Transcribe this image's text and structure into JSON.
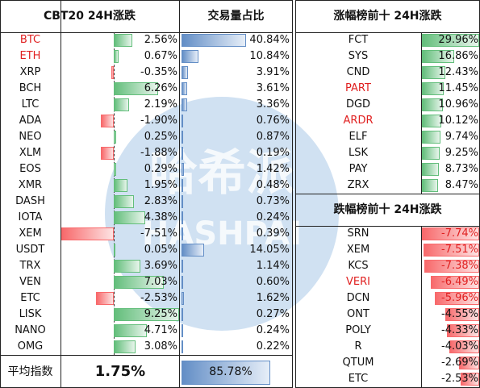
{
  "left": {
    "headers": [
      "CBT20 24H涨跌",
      "交易量占比"
    ],
    "rows": [
      {
        "name": "BTC",
        "change": "2.56%",
        "volume": "40.84%",
        "color": "#e02020"
      },
      {
        "name": "ETH",
        "change": "0.67%",
        "volume": "10.84%",
        "color": "#e02020"
      },
      {
        "name": "XRP",
        "change": "-0.35%",
        "volume": "3.91%"
      },
      {
        "name": "BCH",
        "change": "6.26%",
        "volume": "3.61%"
      },
      {
        "name": "LTC",
        "change": "2.19%",
        "volume": "3.36%"
      },
      {
        "name": "ADA",
        "change": "-1.90%",
        "volume": "0.76%"
      },
      {
        "name": "NEO",
        "change": "0.25%",
        "volume": "0.87%"
      },
      {
        "name": "XLM",
        "change": "-1.88%",
        "volume": "0.19%"
      },
      {
        "name": "EOS",
        "change": "0.29%",
        "volume": "1.42%"
      },
      {
        "name": "XMR",
        "change": "1.95%",
        "volume": "0.48%"
      },
      {
        "name": "DASH",
        "change": "2.83%",
        "volume": "0.73%"
      },
      {
        "name": "IOTA",
        "change": "4.38%",
        "volume": "0.24%"
      },
      {
        "name": "XEM",
        "change": "-7.51%",
        "volume": "0.39%"
      },
      {
        "name": "USDT",
        "change": "0.05%",
        "volume": "14.05%"
      },
      {
        "name": "TRX",
        "change": "3.69%",
        "volume": "1.14%"
      },
      {
        "name": "VEN",
        "change": "7.03%",
        "volume": "0.60%"
      },
      {
        "name": "ETC",
        "change": "-2.53%",
        "volume": "1.62%"
      },
      {
        "name": "LISK",
        "change": "9.25%",
        "volume": "0.27%"
      },
      {
        "name": "NANO",
        "change": "4.71%",
        "volume": "0.24%"
      },
      {
        "name": "OMG",
        "change": "3.08%",
        "volume": "0.22%"
      }
    ],
    "average": {
      "label": "平均指数",
      "change": "1.75%",
      "volume": "85.78%"
    }
  },
  "gainers": {
    "header": "涨幅榜前十 24H涨跌",
    "rows": [
      {
        "name": "FCT",
        "change": "29.96%"
      },
      {
        "name": "SYS",
        "change": "16.86%"
      },
      {
        "name": "CND",
        "change": "12.43%"
      },
      {
        "name": "PART",
        "change": "11.45%",
        "color": "#e02020"
      },
      {
        "name": "DGD",
        "change": "10.96%"
      },
      {
        "name": "ARDR",
        "change": "10.12%",
        "color": "#e02020"
      },
      {
        "name": "ELF",
        "change": "9.74%"
      },
      {
        "name": "LSK",
        "change": "9.25%"
      },
      {
        "name": "PAY",
        "change": "8.73%"
      },
      {
        "name": "ZRX",
        "change": "8.47%"
      }
    ]
  },
  "losers": {
    "header": "跌幅榜前十 24H涨跌",
    "rows": [
      {
        "name": "SRN",
        "change": "-7.74%"
      },
      {
        "name": "XEM",
        "change": "-7.51%"
      },
      {
        "name": "KCS",
        "change": "-7.38%"
      },
      {
        "name": "VERI",
        "change": "-6.49%",
        "color": "#e02020"
      },
      {
        "name": "DCN",
        "change": "-5.96%"
      },
      {
        "name": "ONT",
        "change": "-4.55%"
      },
      {
        "name": "POLY",
        "change": "-4.33%"
      },
      {
        "name": "R",
        "change": "-4.03%"
      },
      {
        "name": "QTUM",
        "change": "-2.69%"
      },
      {
        "name": "ETC",
        "change": "-2.53%"
      }
    ]
  },
  "watermark": {
    "title": "哈希派",
    "subtitle": "HASHPAI"
  }
}
